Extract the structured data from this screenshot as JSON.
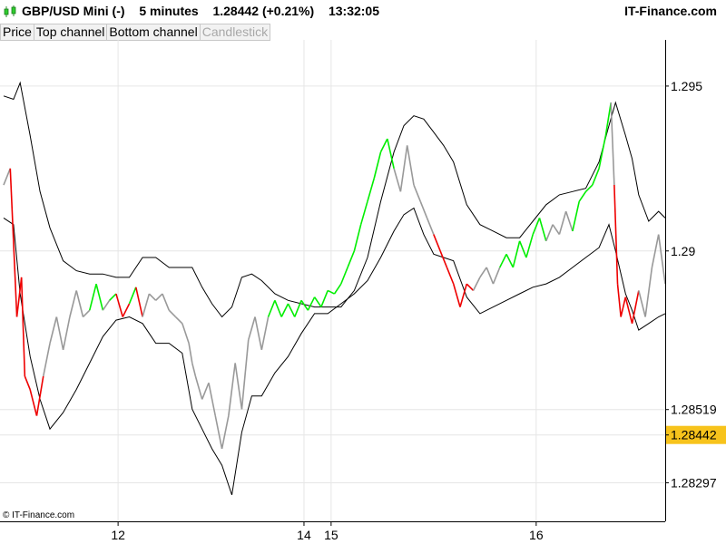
{
  "header": {
    "symbol": "GBP/USD Mini (-)",
    "timeframe": "5 minutes",
    "price": "1.28442 (+0.21%)",
    "time": "13:32:05",
    "brand": "IT-Finance.com"
  },
  "tabs": [
    {
      "label": "Price",
      "enabled": true
    },
    {
      "label": "Top channel",
      "enabled": true
    },
    {
      "label": "Bottom channel",
      "enabled": true
    },
    {
      "label": "Candlestick",
      "enabled": false
    }
  ],
  "footer": {
    "copyright": "© IT-Finance.com"
  },
  "colors": {
    "price": "#999999",
    "up": "#00ee00",
    "down": "#ee0000",
    "channel": "#000000",
    "current_price_box": "#f7c31c",
    "grid": "#e6e6e6"
  },
  "chart_data": {
    "type": "line",
    "ylim": [
      1.2818,
      1.2964
    ],
    "y_ticks": [
      1.295,
      1.29
    ],
    "y_ticks_labels": [
      "1.295",
      "1.29"
    ],
    "price_markers": [
      {
        "value": 1.28519,
        "label": "1.28519",
        "highlight": false
      },
      {
        "value": 1.28442,
        "label": "1.28442",
        "highlight": true
      },
      {
        "value": 1.28297,
        "label": "1.28297",
        "highlight": false
      }
    ],
    "x_range": [
      0,
      100
    ],
    "x_ticks": [
      {
        "x": 17.3,
        "label": "12"
      },
      {
        "x": 45.4,
        "label": "14"
      },
      {
        "x": 49.5,
        "label": "15"
      },
      {
        "x": 80.5,
        "label": "16"
      }
    ],
    "series": [
      {
        "name": "Top channel",
        "x": [
          0,
          1.5,
          2.5,
          4,
          5.5,
          7,
          9,
          11,
          13,
          15,
          17,
          19,
          21,
          23,
          25,
          27,
          28.5,
          30,
          31.5,
          33,
          34.5,
          36,
          37.5,
          39,
          41,
          43,
          45,
          47,
          49,
          51,
          53,
          55,
          57,
          59,
          60.5,
          62,
          63.5,
          65,
          66.5,
          68,
          70,
          72,
          74,
          76,
          78,
          80,
          82,
          84,
          86,
          88,
          90,
          91.5,
          92.5,
          94,
          95,
          96,
          97.5,
          99,
          100
        ],
        "values": [
          1.2947,
          1.2946,
          1.2951,
          1.2935,
          1.2918,
          1.2907,
          1.2897,
          1.2894,
          1.2893,
          1.2893,
          1.2892,
          1.2892,
          1.2898,
          1.2898,
          1.2895,
          1.2895,
          1.2895,
          1.2889,
          1.2884,
          1.288,
          1.2883,
          1.2892,
          1.2893,
          1.2891,
          1.2887,
          1.2885,
          1.2884,
          1.2883,
          1.2883,
          1.2883,
          1.2888,
          1.2898,
          1.2915,
          1.293,
          1.2938,
          1.2941,
          1.294,
          1.2936,
          1.2932,
          1.2927,
          1.2914,
          1.2908,
          1.2906,
          1.2904,
          1.2904,
          1.2909,
          1.2914,
          1.2917,
          1.2918,
          1.2919,
          1.2927,
          1.2938,
          1.2945,
          1.2935,
          1.2928,
          1.2917,
          1.2909,
          1.2912,
          1.291
        ]
      },
      {
        "name": "Bottom channel",
        "x": [
          0,
          1.5,
          2.5,
          4,
          5.5,
          7,
          9,
          11,
          13,
          15,
          17,
          19,
          21,
          23,
          25,
          27,
          28.5,
          30,
          31.5,
          33,
          34.5,
          36,
          37.5,
          39,
          41,
          43,
          45,
          47,
          49,
          51,
          53,
          55,
          57,
          59,
          60.5,
          62,
          63.5,
          65,
          66.5,
          68,
          70,
          72,
          74,
          76,
          78,
          80,
          82,
          84,
          86,
          88,
          90,
          91.5,
          92.5,
          94,
          95,
          96,
          97.5,
          99,
          100
        ],
        "values": [
          1.291,
          1.2908,
          1.2887,
          1.2868,
          1.2855,
          1.2846,
          1.2851,
          1.2858,
          1.2866,
          1.2874,
          1.2879,
          1.288,
          1.2878,
          1.2872,
          1.2872,
          1.2869,
          1.2852,
          1.2846,
          1.284,
          1.2835,
          1.2826,
          1.2845,
          1.2856,
          1.2856,
          1.2863,
          1.2868,
          1.2875,
          1.2881,
          1.2881,
          1.2884,
          1.2887,
          1.2891,
          1.2898,
          1.2906,
          1.2911,
          1.2913,
          1.2905,
          1.2899,
          1.2898,
          1.2897,
          1.2886,
          1.2881,
          1.2883,
          1.2885,
          1.2887,
          1.2889,
          1.289,
          1.2892,
          1.2895,
          1.2898,
          1.2901,
          1.2908,
          1.29,
          1.2887,
          1.2882,
          1.2876,
          1.2878,
          1.288,
          1.2881
        ]
      },
      {
        "name": "Price",
        "x": [
          0,
          1,
          2,
          2.7,
          3.2,
          4,
          5,
          6,
          7,
          8,
          9,
          10,
          11,
          12,
          13,
          14,
          15,
          16,
          17,
          18,
          19,
          20,
          21,
          22,
          23,
          24,
          25,
          26,
          27,
          28,
          28.5,
          29,
          30,
          31,
          32,
          33,
          34,
          35,
          36,
          37,
          38,
          39,
          40,
          41,
          42,
          43,
          44,
          45,
          46,
          47,
          48,
          49,
          50,
          51,
          52,
          53,
          54,
          55,
          56,
          57,
          58,
          59,
          60,
          61,
          62,
          63,
          64,
          65,
          66,
          67,
          68,
          69,
          70,
          71,
          72,
          73,
          74,
          75,
          76,
          77,
          78,
          79,
          80,
          81,
          82,
          83,
          84,
          85,
          86,
          87,
          88,
          89,
          90,
          91,
          91.8,
          92.3,
          92.8,
          93.3,
          94,
          95,
          96,
          97,
          98,
          99,
          100
        ],
        "values": [
          1.292,
          1.2925,
          1.288,
          1.2892,
          1.2862,
          1.2858,
          1.285,
          1.2862,
          1.2872,
          1.288,
          1.287,
          1.288,
          1.2888,
          1.288,
          1.2882,
          1.289,
          1.2882,
          1.2885,
          1.2887,
          1.288,
          1.2884,
          1.2889,
          1.288,
          1.2887,
          1.2885,
          1.2887,
          1.2882,
          1.288,
          1.2878,
          1.2872,
          1.2866,
          1.2862,
          1.2855,
          1.286,
          1.285,
          1.284,
          1.285,
          1.2866,
          1.2852,
          1.2873,
          1.288,
          1.287,
          1.288,
          1.2885,
          1.288,
          1.2884,
          1.288,
          1.2885,
          1.2882,
          1.2886,
          1.2883,
          1.2888,
          1.2887,
          1.289,
          1.2895,
          1.29,
          1.2908,
          1.2915,
          1.2922,
          1.293,
          1.2934,
          1.2925,
          1.2918,
          1.2932,
          1.292,
          1.2915,
          1.291,
          1.2905,
          1.29,
          1.2895,
          1.289,
          1.2883,
          1.289,
          1.2888,
          1.2892,
          1.2895,
          1.289,
          1.2895,
          1.2899,
          1.2895,
          1.2903,
          1.2898,
          1.2905,
          1.291,
          1.2903,
          1.2908,
          1.2905,
          1.2912,
          1.2906,
          1.2915,
          1.2918,
          1.292,
          1.2925,
          1.2935,
          1.2945,
          1.292,
          1.289,
          1.288,
          1.2886,
          1.2878,
          1.2888,
          1.288,
          1.2895,
          1.2905,
          1.289
        ]
      }
    ]
  }
}
